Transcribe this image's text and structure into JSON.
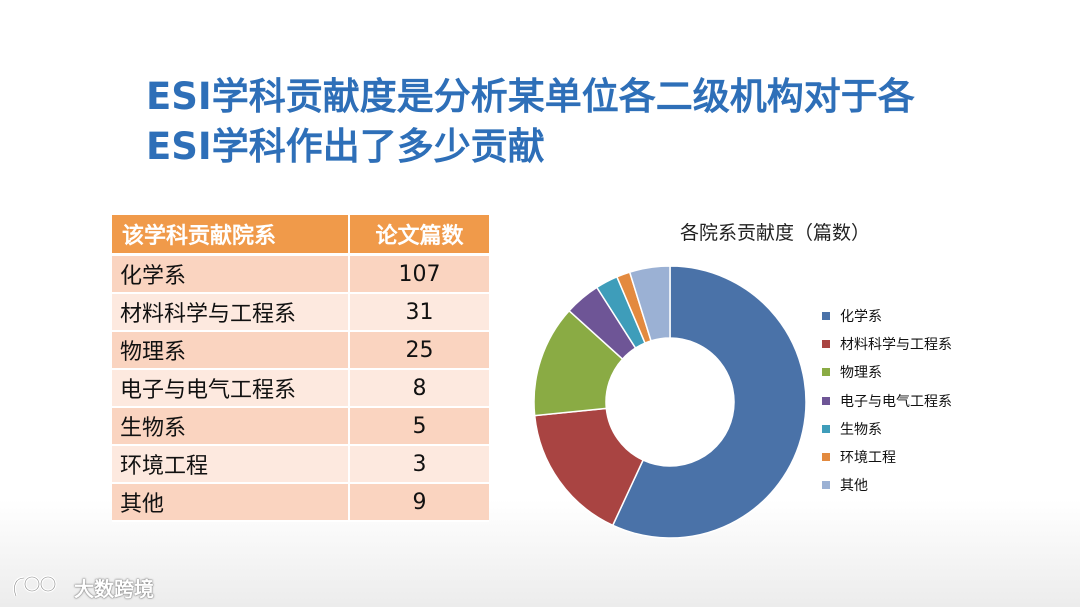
{
  "title": {
    "line1": "ESI学科贡献度是分析某单位各二级机构对于各",
    "line2": "ESI学科作出了多少贡献"
  },
  "table": {
    "headers": [
      "该学科贡献院系",
      "论文篇数"
    ],
    "rows": [
      {
        "dept": "化学系",
        "count": "107"
      },
      {
        "dept": "材料科学与工程系",
        "count": "31"
      },
      {
        "dept": "物理系",
        "count": "25"
      },
      {
        "dept": "电子与电气工程系",
        "count": "8"
      },
      {
        "dept": "生物系",
        "count": "5"
      },
      {
        "dept": "环境工程",
        "count": "3"
      },
      {
        "dept": "其他",
        "count": "9"
      }
    ]
  },
  "chart_data": {
    "type": "pie",
    "title": "各院系贡献度（篇数）",
    "categories": [
      "化学系",
      "材料科学与工程系",
      "物理系",
      "电子与电气工程系",
      "生物系",
      "环境工程",
      "其他"
    ],
    "values": [
      107,
      31,
      25,
      8,
      5,
      3,
      9
    ],
    "colors": [
      "#4a72a8",
      "#a94442",
      "#8aab44",
      "#6e5596",
      "#3e9dba",
      "#e38a3f",
      "#9bb1d4"
    ],
    "legend": "right",
    "donut": true
  },
  "watermark": {
    "text": "大数跨境",
    "icon": "brand-logo-icon"
  }
}
